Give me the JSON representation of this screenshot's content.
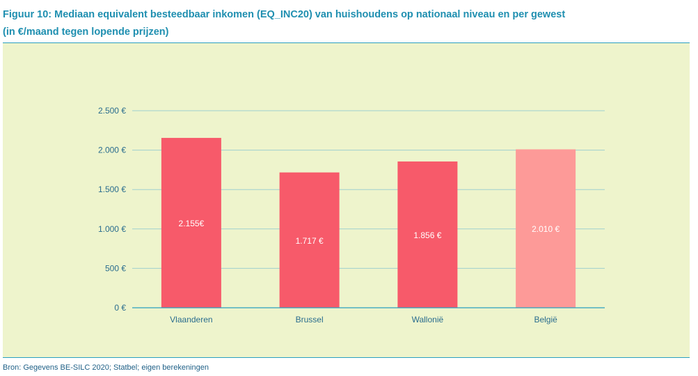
{
  "title_line1": "Figuur 10: Mediaan equivalent besteedbaar inkomen (EQ_INC20) van huishoudens op nationaal niveau en per gewest",
  "title_line2": "(in €/maand tegen lopende prijzen)",
  "source": "Bron: Gegevens BE-SILC 2020; Statbel; eigen berekeningen",
  "chart_data": {
    "type": "bar",
    "categories": [
      "Vlaanderen",
      "Brussel",
      "Wallonië",
      "België"
    ],
    "values": [
      2155,
      1717,
      1856,
      2010
    ],
    "data_labels": [
      "2.155€",
      "1.717 €",
      "1.856 €",
      "2.010 €"
    ],
    "bar_colors": [
      "#f75a6a",
      "#f75a6a",
      "#f75a6a",
      "#fd9a98"
    ],
    "ylim": [
      0,
      2500
    ],
    "yticks": [
      0,
      500,
      1000,
      1500,
      2000,
      2500
    ],
    "ytick_labels": [
      "0 €",
      "500 €",
      "1.000 €",
      "1.500 €",
      "2.000 €",
      "2.500 €"
    ],
    "grid": true,
    "gridline_color": "#9fd0cf",
    "axis_color": "#2a9fc0"
  }
}
